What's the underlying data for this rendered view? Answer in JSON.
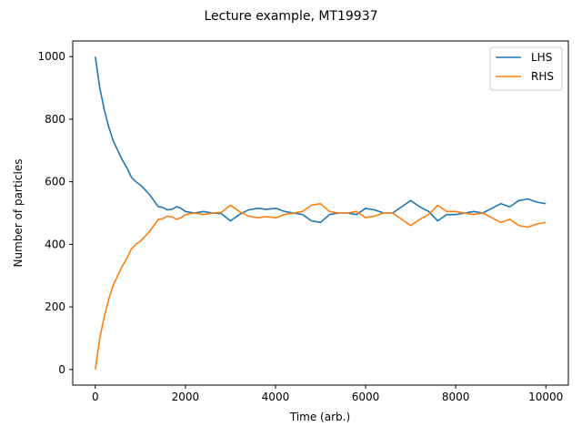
{
  "chart_data": {
    "type": "line",
    "title": "Lecture example, MT19937",
    "xlabel": "Time (arb.)",
    "ylabel": "Number of particles",
    "xlim": [
      -500,
      10500
    ],
    "ylim": [
      -50,
      1050
    ],
    "x_ticks": [
      0,
      2000,
      4000,
      6000,
      8000,
      10000
    ],
    "y_ticks": [
      0,
      200,
      400,
      600,
      800,
      1000
    ],
    "grid": false,
    "legend_position": "top-right",
    "series": [
      {
        "name": "LHS",
        "color": "#1f77b4",
        "x": [
          0,
          100,
          200,
          300,
          400,
          500,
          600,
          700,
          800,
          900,
          1000,
          1100,
          1200,
          1300,
          1400,
          1500,
          1600,
          1700,
          1800,
          1900,
          2000,
          2200,
          2400,
          2600,
          2800,
          3000,
          3200,
          3400,
          3600,
          3800,
          4000,
          4200,
          4400,
          4600,
          4800,
          5000,
          5200,
          5400,
          5600,
          5800,
          6000,
          6200,
          6400,
          6600,
          6800,
          7000,
          7200,
          7400,
          7600,
          7800,
          8000,
          8200,
          8400,
          8600,
          8800,
          9000,
          9200,
          9400,
          9600,
          9800,
          10000
        ],
        "y": [
          1000,
          900,
          830,
          775,
          730,
          700,
          670,
          645,
          615,
          600,
          590,
          575,
          560,
          540,
          520,
          518,
          510,
          512,
          520,
          515,
          505,
          500,
          505,
          500,
          498,
          475,
          495,
          510,
          515,
          512,
          515,
          505,
          500,
          495,
          475,
          470,
          495,
          500,
          500,
          495,
          515,
          510,
          500,
          500,
          520,
          540,
          520,
          505,
          475,
          495,
          495,
          500,
          505,
          500,
          515,
          530,
          520,
          540,
          545,
          535,
          530
        ]
      },
      {
        "name": "RHS",
        "color": "#ff7f0e",
        "x": [
          0,
          100,
          200,
          300,
          400,
          500,
          600,
          700,
          800,
          900,
          1000,
          1100,
          1200,
          1300,
          1400,
          1500,
          1600,
          1700,
          1800,
          1900,
          2000,
          2200,
          2400,
          2600,
          2800,
          3000,
          3200,
          3400,
          3600,
          3800,
          4000,
          4200,
          4400,
          4600,
          4800,
          5000,
          5200,
          5400,
          5600,
          5800,
          6000,
          6200,
          6400,
          6600,
          6800,
          7000,
          7200,
          7400,
          7600,
          7800,
          8000,
          8200,
          8400,
          8600,
          8800,
          9000,
          9200,
          9400,
          9600,
          9800,
          10000
        ],
        "y": [
          0,
          100,
          170,
          225,
          270,
          300,
          330,
          355,
          385,
          400,
          410,
          425,
          440,
          460,
          480,
          482,
          490,
          488,
          480,
          485,
          495,
          500,
          495,
          500,
          502,
          525,
          505,
          490,
          485,
          488,
          485,
          495,
          500,
          505,
          525,
          530,
          505,
          500,
          500,
          505,
          485,
          490,
          500,
          500,
          480,
          460,
          480,
          495,
          525,
          505,
          505,
          500,
          495,
          500,
          485,
          470,
          480,
          460,
          455,
          465,
          470
        ]
      }
    ]
  }
}
